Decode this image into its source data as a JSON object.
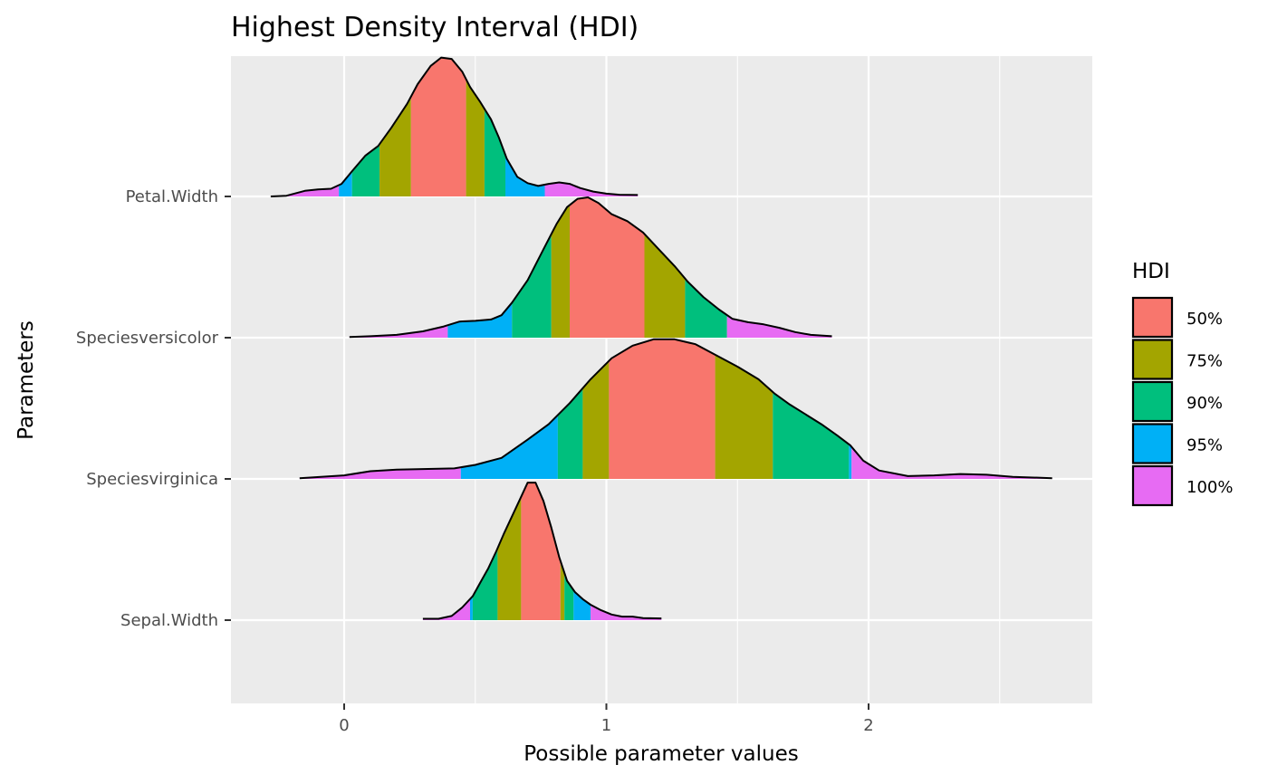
{
  "chart_data": {
    "type": "ridgeline",
    "title": "Highest Density Interval (HDI)",
    "xlabel": "Possible parameter values",
    "ylabel": "Parameters",
    "xlim": [
      -0.43,
      2.85
    ],
    "x_ticks": [
      0,
      1,
      2
    ],
    "x_tick_labels": [
      "0",
      "1",
      "2"
    ],
    "grid": true,
    "legend": {
      "title": "HDI",
      "position": "right",
      "entries": [
        {
          "label": "50%",
          "color": "#F8766D"
        },
        {
          "label": "75%",
          "color": "#A3A500"
        },
        {
          "label": "90%",
          "color": "#00BF7D"
        },
        {
          "label": "95%",
          "color": "#00B0F6"
        },
        {
          "label": "100%",
          "color": "#E76BF3"
        }
      ]
    },
    "parameters": [
      {
        "name": "Petal.Width",
        "density": [
          [
            -0.28,
            0
          ],
          [
            -0.22,
            0.005
          ],
          [
            -0.15,
            0.04
          ],
          [
            -0.1,
            0.05
          ],
          [
            -0.05,
            0.055
          ],
          [
            -0.01,
            0.09
          ],
          [
            0.03,
            0.18
          ],
          [
            0.08,
            0.29
          ],
          [
            0.13,
            0.36
          ],
          [
            0.18,
            0.49
          ],
          [
            0.24,
            0.66
          ],
          [
            0.28,
            0.8
          ],
          [
            0.33,
            0.93
          ],
          [
            0.37,
            0.99
          ],
          [
            0.41,
            0.98
          ],
          [
            0.45,
            0.89
          ],
          [
            0.48,
            0.78
          ],
          [
            0.52,
            0.67
          ],
          [
            0.56,
            0.55
          ],
          [
            0.59,
            0.42
          ],
          [
            0.62,
            0.27
          ],
          [
            0.66,
            0.14
          ],
          [
            0.7,
            0.095
          ],
          [
            0.74,
            0.075
          ],
          [
            0.78,
            0.09
          ],
          [
            0.82,
            0.1
          ],
          [
            0.86,
            0.09
          ],
          [
            0.9,
            0.06
          ],
          [
            0.95,
            0.035
          ],
          [
            1.0,
            0.02
          ],
          [
            1.05,
            0.012
          ],
          [
            1.12,
            0.01
          ]
        ],
        "bands": [
          {
            "from": -0.28,
            "to": -0.02,
            "hdi": "100%"
          },
          {
            "from": -0.02,
            "to": 0.03,
            "hdi": "95%"
          },
          {
            "from": 0.03,
            "to": 0.135,
            "hdi": "90%"
          },
          {
            "from": 0.135,
            "to": 0.255,
            "hdi": "75%"
          },
          {
            "from": 0.255,
            "to": 0.465,
            "hdi": "50%"
          },
          {
            "from": 0.465,
            "to": 0.535,
            "hdi": "75%"
          },
          {
            "from": 0.535,
            "to": 0.615,
            "hdi": "90%"
          },
          {
            "from": 0.615,
            "to": 0.765,
            "hdi": "95%"
          },
          {
            "from": 0.765,
            "to": 1.12,
            "hdi": "100%"
          }
        ]
      },
      {
        "name": "Speciesversicolor",
        "density": [
          [
            0.02,
            0.005
          ],
          [
            0.1,
            0.01
          ],
          [
            0.2,
            0.02
          ],
          [
            0.3,
            0.045
          ],
          [
            0.38,
            0.08
          ],
          [
            0.44,
            0.115
          ],
          [
            0.5,
            0.12
          ],
          [
            0.56,
            0.13
          ],
          [
            0.6,
            0.16
          ],
          [
            0.64,
            0.25
          ],
          [
            0.7,
            0.41
          ],
          [
            0.76,
            0.63
          ],
          [
            0.81,
            0.81
          ],
          [
            0.85,
            0.93
          ],
          [
            0.89,
            0.99
          ],
          [
            0.93,
            1.0
          ],
          [
            0.97,
            0.96
          ],
          [
            1.02,
            0.88
          ],
          [
            1.08,
            0.83
          ],
          [
            1.14,
            0.75
          ],
          [
            1.2,
            0.63
          ],
          [
            1.26,
            0.51
          ],
          [
            1.31,
            0.4
          ],
          [
            1.37,
            0.29
          ],
          [
            1.43,
            0.2
          ],
          [
            1.48,
            0.135
          ],
          [
            1.54,
            0.11
          ],
          [
            1.6,
            0.095
          ],
          [
            1.66,
            0.07
          ],
          [
            1.72,
            0.04
          ],
          [
            1.78,
            0.02
          ],
          [
            1.86,
            0.01
          ]
        ],
        "bands": [
          {
            "from": 0.02,
            "to": 0.395,
            "hdi": "100%"
          },
          {
            "from": 0.395,
            "to": 0.64,
            "hdi": "95%"
          },
          {
            "from": 0.64,
            "to": 0.79,
            "hdi": "90%"
          },
          {
            "from": 0.79,
            "to": 0.86,
            "hdi": "75%"
          },
          {
            "from": 0.86,
            "to": 1.145,
            "hdi": "50%"
          },
          {
            "from": 1.145,
            "to": 1.3,
            "hdi": "75%"
          },
          {
            "from": 1.3,
            "to": 1.46,
            "hdi": "90%"
          },
          {
            "from": 1.46,
            "to": 1.86,
            "hdi": "100%"
          }
        ]
      },
      {
        "name": "Speciesvirginica",
        "density": [
          [
            -0.17,
            0.005
          ],
          [
            0.0,
            0.025
          ],
          [
            0.1,
            0.055
          ],
          [
            0.2,
            0.066
          ],
          [
            0.3,
            0.07
          ],
          [
            0.42,
            0.075
          ],
          [
            0.5,
            0.1
          ],
          [
            0.6,
            0.15
          ],
          [
            0.7,
            0.28
          ],
          [
            0.78,
            0.39
          ],
          [
            0.86,
            0.54
          ],
          [
            0.94,
            0.71
          ],
          [
            1.02,
            0.86
          ],
          [
            1.1,
            0.95
          ],
          [
            1.18,
            0.995
          ],
          [
            1.26,
            0.995
          ],
          [
            1.34,
            0.96
          ],
          [
            1.42,
            0.88
          ],
          [
            1.5,
            0.8
          ],
          [
            1.58,
            0.71
          ],
          [
            1.64,
            0.61
          ],
          [
            1.7,
            0.53
          ],
          [
            1.76,
            0.46
          ],
          [
            1.82,
            0.39
          ],
          [
            1.88,
            0.31
          ],
          [
            1.93,
            0.24
          ],
          [
            1.98,
            0.13
          ],
          [
            2.04,
            0.06
          ],
          [
            2.15,
            0.02
          ],
          [
            2.25,
            0.025
          ],
          [
            2.35,
            0.035
          ],
          [
            2.45,
            0.03
          ],
          [
            2.55,
            0.015
          ],
          [
            2.7,
            0.005
          ]
        ],
        "bands": [
          {
            "from": -0.17,
            "to": 0.445,
            "hdi": "100%"
          },
          {
            "from": 0.445,
            "to": 0.815,
            "hdi": "95%"
          },
          {
            "from": 0.815,
            "to": 0.91,
            "hdi": "90%"
          },
          {
            "from": 0.91,
            "to": 1.01,
            "hdi": "75%"
          },
          {
            "from": 1.01,
            "to": 1.415,
            "hdi": "50%"
          },
          {
            "from": 1.415,
            "to": 1.635,
            "hdi": "75%"
          },
          {
            "from": 1.635,
            "to": 1.925,
            "hdi": "90%"
          },
          {
            "from": 1.925,
            "to": 1.935,
            "hdi": "95%"
          },
          {
            "from": 1.935,
            "to": 2.7,
            "hdi": "100%"
          }
        ]
      },
      {
        "name": "Sepal.Width",
        "density": [
          [
            0.3,
            0.01
          ],
          [
            0.36,
            0.01
          ],
          [
            0.41,
            0.03
          ],
          [
            0.45,
            0.09
          ],
          [
            0.49,
            0.17
          ],
          [
            0.52,
            0.27
          ],
          [
            0.55,
            0.37
          ],
          [
            0.58,
            0.49
          ],
          [
            0.61,
            0.62
          ],
          [
            0.64,
            0.74
          ],
          [
            0.67,
            0.86
          ],
          [
            0.7,
            0.98
          ],
          [
            0.73,
            0.98
          ],
          [
            0.76,
            0.85
          ],
          [
            0.79,
            0.66
          ],
          [
            0.82,
            0.45
          ],
          [
            0.85,
            0.28
          ],
          [
            0.88,
            0.2
          ],
          [
            0.91,
            0.15
          ],
          [
            0.94,
            0.11
          ],
          [
            0.98,
            0.07
          ],
          [
            1.02,
            0.04
          ],
          [
            1.06,
            0.025
          ],
          [
            1.1,
            0.025
          ],
          [
            1.14,
            0.015
          ],
          [
            1.21,
            0.012
          ]
        ],
        "bands": [
          {
            "from": 0.3,
            "to": 0.48,
            "hdi": "100%"
          },
          {
            "from": 0.48,
            "to": 0.49,
            "hdi": "95%"
          },
          {
            "from": 0.49,
            "to": 0.585,
            "hdi": "90%"
          },
          {
            "from": 0.585,
            "to": 0.675,
            "hdi": "75%"
          },
          {
            "from": 0.675,
            "to": 0.825,
            "hdi": "50%"
          },
          {
            "from": 0.825,
            "to": 0.84,
            "hdi": "75%"
          },
          {
            "from": 0.84,
            "to": 0.875,
            "hdi": "90%"
          },
          {
            "from": 0.875,
            "to": 0.94,
            "hdi": "95%"
          },
          {
            "from": 0.94,
            "to": 1.21,
            "hdi": "100%"
          }
        ]
      }
    ]
  }
}
